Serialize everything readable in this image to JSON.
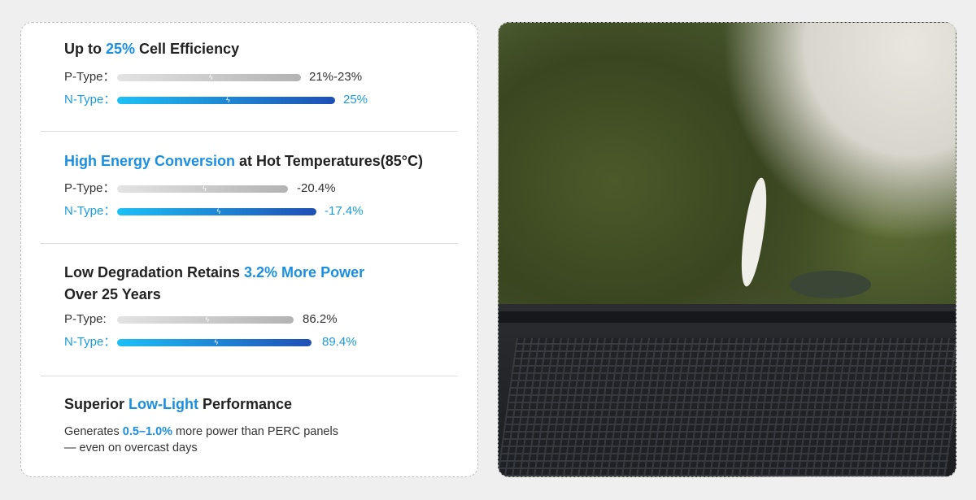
{
  "sections": [
    {
      "title_pre": "Up to ",
      "title_hl": "25%",
      "title_post": " Cell Efficiency",
      "p_label": "P-Type：",
      "p_value": "21%-23%",
      "n_label": "N-Type：",
      "n_value": "25%"
    },
    {
      "title_hl": "High Energy Conversion",
      "title_post": " at Hot Temperatures(85°C)",
      "p_label": "P-Type：",
      "p_value": "-20.4%",
      "n_label": "N-Type：",
      "n_value": "-17.4%"
    },
    {
      "title_pre": "Low Degradation Retains ",
      "title_hl": "3.2% More Power",
      "title_line2": "Over 25 Years",
      "p_label": "P-Type:",
      "p_value": "86.2%",
      "n_label": "N-Type：",
      "n_value": "89.4%"
    },
    {
      "title_pre": "Superior ",
      "title_hl": "Low-Light",
      "title_post": " Performance",
      "body_pre": "Generates ",
      "body_hl": "0.5–1.0%",
      "body_post": " more power than PERC panels",
      "body_line2": "— even on overcast days"
    }
  ],
  "icons": {
    "bar_marker": "lightning-bolt-icon"
  },
  "colors": {
    "accent": "#1a8fe0",
    "n_bar_start": "#1cc0f5",
    "n_bar_end": "#1f4fb5",
    "p_bar": "#b3b3b3"
  }
}
